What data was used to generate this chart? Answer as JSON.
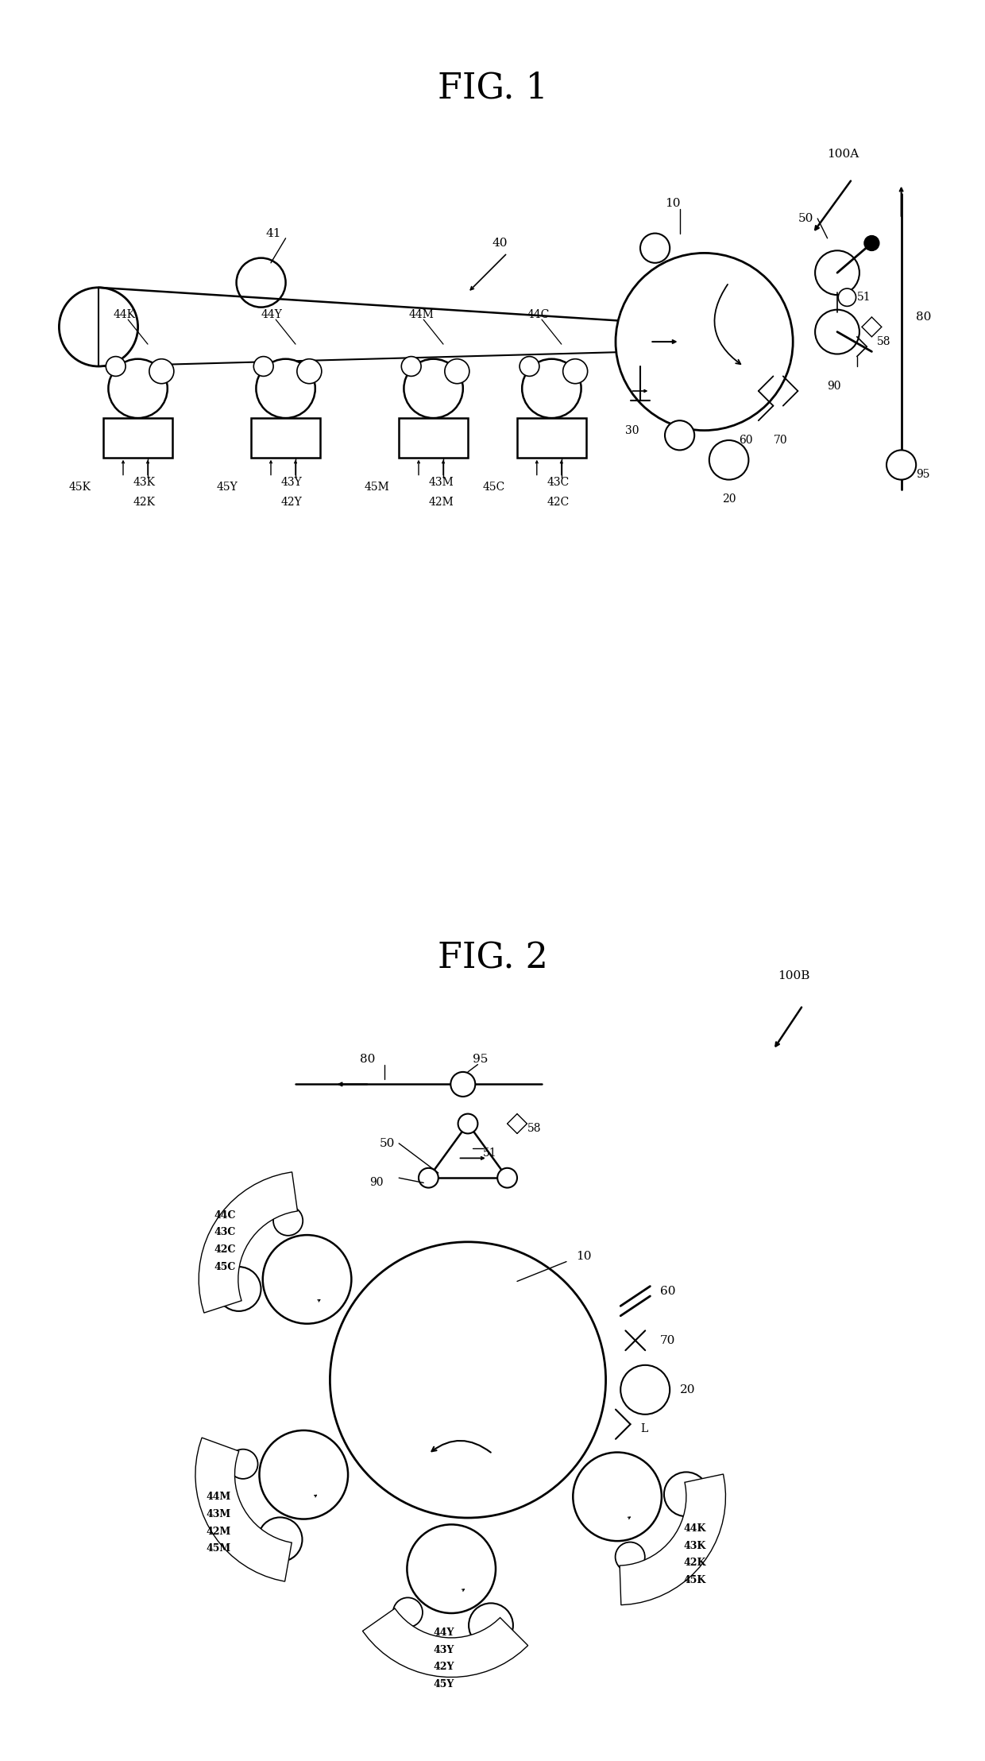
{
  "fig1_title": "FIG. 1",
  "fig2_title": "FIG. 2",
  "label_100A": "100A",
  "label_100B": "100B",
  "bg_color": "#ffffff",
  "font_size_title": 32,
  "font_size_label": 12,
  "font_size_ref": 11
}
